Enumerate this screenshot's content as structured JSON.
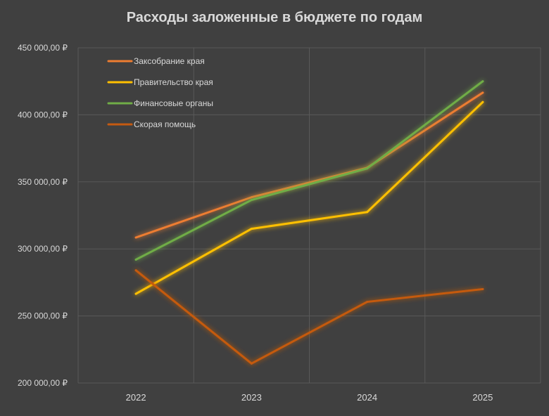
{
  "chart_data": {
    "type": "line",
    "title": "Расходы заложенные в бюджете по годам",
    "xlabel": "",
    "ylabel": "",
    "categories": [
      "2022",
      "2023",
      "2024",
      "2025"
    ],
    "ylim": [
      200000,
      450000
    ],
    "yticks": [
      200000,
      250000,
      300000,
      350000,
      400000,
      450000
    ],
    "ytick_labels": [
      "200 000,00 ₽",
      "250 000,00 ₽",
      "300 000,00 ₽",
      "350 000,00 ₽",
      "400 000,00 ₽",
      "450 000,00 ₽"
    ],
    "grid": true,
    "legend_position": "top-left",
    "series": [
      {
        "name": "Заксобрание края",
        "color": "#ed7d31",
        "values": [
          308500,
          338500,
          360500,
          416500
        ]
      },
      {
        "name": "Правительство края",
        "color": "#ffc000",
        "values": [
          266500,
          315000,
          327500,
          409500
        ]
      },
      {
        "name": "Финансовые органы",
        "color": "#70ad47",
        "values": [
          292000,
          336500,
          360000,
          425000
        ]
      },
      {
        "name": "Скорая помощь",
        "color": "#c55a11",
        "values": [
          284000,
          214500,
          260500,
          270000
        ]
      }
    ]
  }
}
